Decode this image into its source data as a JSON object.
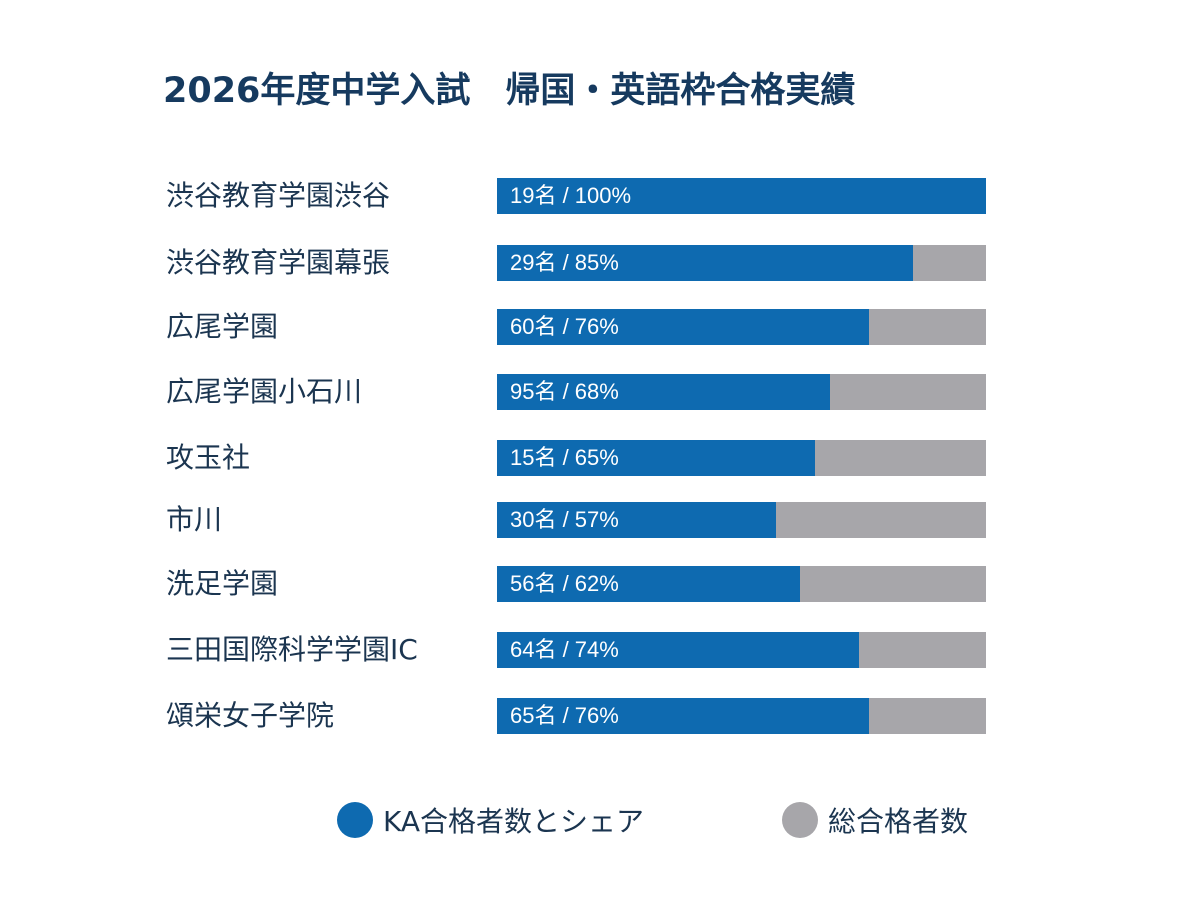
{
  "chart_data": {
    "type": "bar",
    "orientation": "horizontal",
    "stacked": true,
    "title": "2026年度中学入試　帰国・英語枠合格実績",
    "categories": [
      "渋谷教育学園渋谷",
      "渋谷教育学園幕張",
      "広尾学園",
      "広尾学園小石川",
      "攻玉社",
      "市川",
      "洗足学園",
      "三田国際科学学園IC",
      "頌栄女子学院"
    ],
    "value_labels": [
      "19名 / 100%",
      "29名 / 85%",
      "60名 / 76%",
      "95名 / 68%",
      "15名 / 65%",
      "30名 / 57%",
      "56名 / 62%",
      "64名 / 74%",
      "65名 / 76%"
    ],
    "ka_counts": [
      19,
      29,
      60,
      95,
      15,
      30,
      56,
      64,
      65
    ],
    "share_percent": [
      100,
      85,
      76,
      68,
      65,
      57,
      62,
      74,
      76
    ],
    "xlim": [
      0,
      100
    ],
    "grid": false,
    "legend_position": "bottom",
    "series": [
      {
        "name": "KA合格者数とシェア",
        "color": "#0e6ab0"
      },
      {
        "name": "総合格者数",
        "color": "#a7a6aa"
      }
    ]
  }
}
